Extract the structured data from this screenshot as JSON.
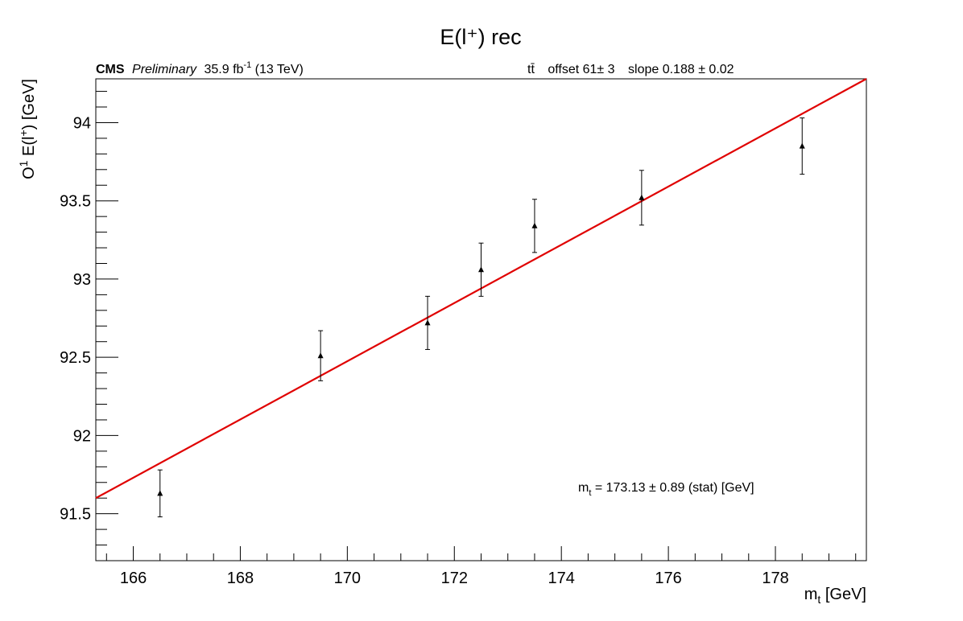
{
  "chart_data": {
    "type": "scatter",
    "title": "E(l⁺) rec",
    "xlabel": "m",
    "xlabel_sub": "t",
    "xlabel_unit": " [GeV]",
    "ylabel": "O",
    "ylabel_sup": "1",
    "ylabel_mid": " E(l",
    "ylabel_sup2": "+",
    "ylabel_unit": ") [GeV]",
    "xlim": [
      165.3,
      179.7
    ],
    "ylim": [
      91.2,
      94.28
    ],
    "x_ticks": [
      166,
      168,
      170,
      172,
      174,
      176,
      178
    ],
    "x_tick_labels": [
      "166",
      "168",
      "170",
      "172",
      "174",
      "176",
      "178"
    ],
    "y_ticks": [
      91.5,
      92,
      92.5,
      93,
      93.5,
      94
    ],
    "y_tick_labels": [
      "91.5",
      "92",
      "92.5",
      "93",
      "93.5",
      "94"
    ],
    "grid": false,
    "series": [
      {
        "points": [
          {
            "x": 166.5,
            "y": 91.63,
            "err": 0.15
          },
          {
            "x": 169.5,
            "y": 92.51,
            "err": 0.16
          },
          {
            "x": 171.5,
            "y": 92.72,
            "err": 0.17
          },
          {
            "x": 172.5,
            "y": 93.06,
            "err": 0.17
          },
          {
            "x": 173.5,
            "y": 93.34,
            "err": 0.17
          },
          {
            "x": 175.5,
            "y": 93.52,
            "err": 0.175
          },
          {
            "x": 178.5,
            "y": 93.85,
            "err": 0.18
          }
        ],
        "marker": "triangle",
        "color": "#000000"
      }
    ],
    "fit": {
      "x": [
        165.3,
        179.7
      ],
      "y": [
        91.6,
        94.28
      ],
      "color": "#e00000"
    },
    "annotations": {
      "cms": "CMS",
      "preliminary": "Preliminary",
      "lumi": "35.9 fb",
      "lumi_sup": "-1",
      "energy": " (13 TeV)",
      "process": "tt̄",
      "offset": "offset 61± 3",
      "slope": "slope 0.188 ± 0.02",
      "result_m": "m",
      "result_sub": "t",
      "result_value": " = 173.13 ± 0.89 (stat) [GeV]"
    }
  }
}
